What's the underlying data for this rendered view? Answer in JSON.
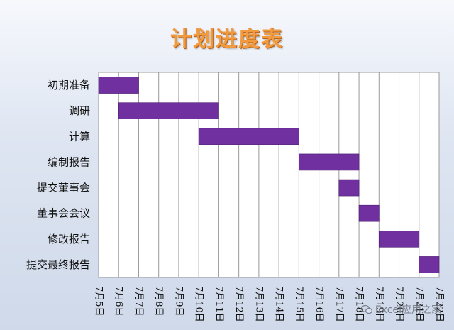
{
  "page_title": "计划进度表",
  "watermark": "Excel应用之家",
  "colors": {
    "bar": "#7030a0",
    "title": "#f19a3e",
    "grid": "#9a9a9a",
    "plot_bg": "#ffffff"
  },
  "chart_data": {
    "type": "bar",
    "orientation": "horizontal-gantt",
    "title": "计划进度表",
    "x_ticks": [
      "7月5日",
      "7月6日",
      "7月7日",
      "7月8日",
      "7月9日",
      "7月10日",
      "7月11日",
      "7月12日",
      "7月13日",
      "7月14日",
      "7月15日",
      "7月16日",
      "7月17日",
      "7月18日",
      "7月19日",
      "7月20日",
      "7月21日",
      "7月22日"
    ],
    "xlim": [
      "7月5日",
      "7月22日"
    ],
    "tasks": [
      {
        "label": "初期准备",
        "start": "7月5日",
        "end": "7月7日"
      },
      {
        "label": "调研",
        "start": "7月6日",
        "end": "7月11日"
      },
      {
        "label": "计算",
        "start": "7月10日",
        "end": "7月15日"
      },
      {
        "label": "编制报告",
        "start": "7月15日",
        "end": "7月18日"
      },
      {
        "label": "提交董事会",
        "start": "7月17日",
        "end": "7月18日"
      },
      {
        "label": "董事会会议",
        "start": "7月18日",
        "end": "7月19日"
      },
      {
        "label": "修改报告",
        "start": "7月19日",
        "end": "7月21日"
      },
      {
        "label": "提交最终报告",
        "start": "7月21日",
        "end": "7月22日"
      }
    ],
    "grid": true,
    "legend": false
  }
}
